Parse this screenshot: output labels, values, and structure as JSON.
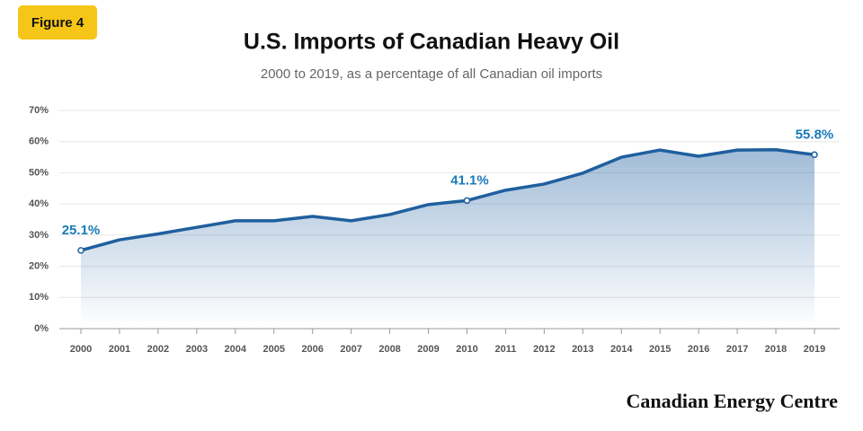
{
  "chart_data": {
    "type": "line",
    "badge": "Figure 4",
    "title": "U.S. Imports of Canadian Heavy Oil",
    "subtitle": "2000 to 2019, as a percentage of all Canadian oil imports",
    "source": "Canadian Energy Centre",
    "categories": [
      "2000",
      "2001",
      "2002",
      "2003",
      "2004",
      "2005",
      "2006",
      "2007",
      "2008",
      "2009",
      "2010",
      "2011",
      "2012",
      "2013",
      "2014",
      "2015",
      "2016",
      "2017",
      "2018",
      "2019"
    ],
    "values": [
      25.1,
      28.5,
      30.4,
      32.5,
      34.6,
      34.6,
      36.0,
      34.6,
      36.6,
      39.8,
      41.1,
      44.4,
      46.4,
      49.9,
      55.0,
      57.3,
      55.3,
      57.3,
      57.4,
      55.8
    ],
    "value_labels": [
      "25.1%",
      null,
      null,
      null,
      null,
      null,
      null,
      null,
      null,
      null,
      "41.1%",
      null,
      null,
      null,
      null,
      null,
      null,
      null,
      null,
      "55.8%"
    ],
    "color": "#1f5f9e",
    "label_color": "#1a7ab8",
    "ylim": [
      0,
      70
    ],
    "yticks": [
      {
        "value": 0,
        "label": "0%"
      },
      {
        "value": 10,
        "label": "10%"
      },
      {
        "value": 20,
        "label": "20%"
      },
      {
        "value": 30,
        "label": "30%"
      },
      {
        "value": 40,
        "label": "40%"
      },
      {
        "value": 50,
        "label": "50%"
      },
      {
        "value": 60,
        "label": "60%"
      },
      {
        "value": 70,
        "label": "70%"
      }
    ],
    "grid": true
  }
}
